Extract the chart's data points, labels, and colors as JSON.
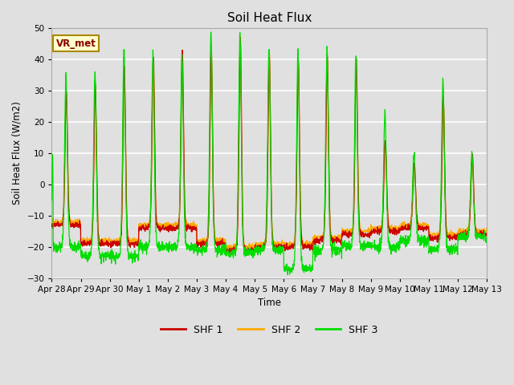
{
  "title": "Soil Heat Flux",
  "ylabel": "Soil Heat Flux (W/m2)",
  "xlabel": "Time",
  "ylim": [
    -30,
    50
  ],
  "yticks": [
    -30,
    -20,
    -10,
    0,
    10,
    20,
    30,
    40,
    50
  ],
  "bg_color": "#e0e0e0",
  "plot_bg_color": "#e0e0e0",
  "grid_color": "#ffffff",
  "colors": {
    "SHF 1": "#cc0000",
    "SHF 2": "#ffaa00",
    "SHF 3": "#00dd00"
  },
  "legend_labels": [
    "SHF 1",
    "SHF 2",
    "SHF 3"
  ],
  "annotation_text": "VR_met",
  "annotation_box_color": "#ffffcc",
  "annotation_border_color": "#aa8800",
  "annotation_text_color": "#880000",
  "n_days": 15,
  "xtick_labels": [
    "Apr 28",
    "Apr 29",
    "Apr 30",
    "May 1",
    "May 2",
    "May 3",
    "May 4",
    "May 5",
    "May 6",
    "May 7",
    "May 8",
    "May 9",
    "May 10",
    "May 11",
    "May 12",
    "May 13"
  ]
}
